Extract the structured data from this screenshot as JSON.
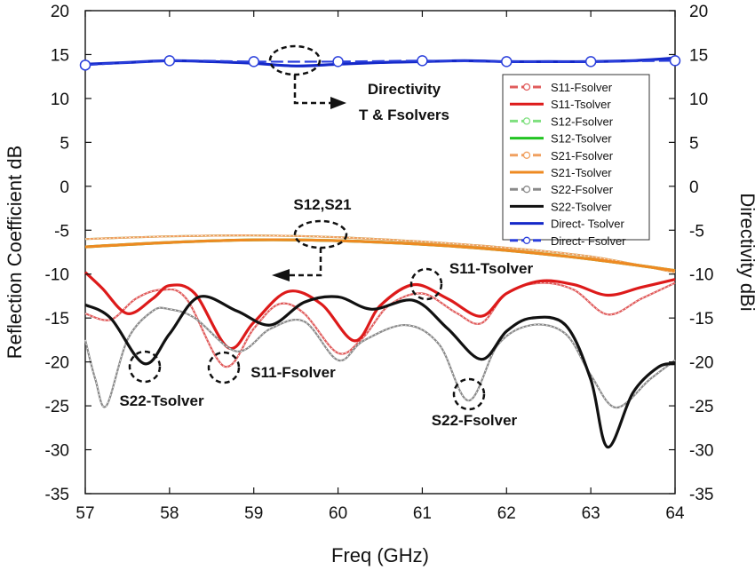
{
  "chart_data": {
    "type": "line",
    "xlabel": "Freq (GHz)",
    "ylabel": "Reflection Coefficient dB",
    "ylabel_right": "Directivity dBi",
    "xlim": [
      57,
      64
    ],
    "ylim": [
      -35,
      20
    ],
    "ylim_right": [
      -35,
      20
    ],
    "x_ticks": [
      "57",
      "58",
      "59",
      "60",
      "61",
      "62",
      "63",
      "64"
    ],
    "y_ticks": [
      "20",
      "15",
      "10",
      "5",
      "0",
      "-5",
      "-10",
      "-15",
      "-20",
      "-25",
      "-30",
      "-35"
    ],
    "grid": false,
    "legend_position": "right, upper",
    "series": [
      {
        "name": "S11-Fsolver",
        "color": "#e05c5c",
        "style": "marker",
        "x": [
          57,
          57.3,
          57.6,
          57.9,
          58.2,
          58.65,
          59.0,
          59.3,
          59.6,
          60.0,
          60.3,
          60.6,
          61.0,
          61.4,
          61.7,
          62.0,
          62.4,
          62.8,
          63.2,
          63.6,
          64.0
        ],
        "y": [
          -14.5,
          -15.2,
          -12.8,
          -11.8,
          -12.8,
          -20.5,
          -16.2,
          -13.4,
          -14.5,
          -19.0,
          -17.2,
          -13.6,
          -12.2,
          -14.4,
          -15.6,
          -12.2,
          -11.0,
          -11.8,
          -14.6,
          -12.8,
          -11.0
        ]
      },
      {
        "name": "S11-Tsolver",
        "color": "#dd1a1a",
        "style": "solid",
        "x": [
          57,
          57.2,
          57.5,
          57.8,
          58.0,
          58.3,
          58.7,
          59.0,
          59.4,
          59.8,
          60.2,
          60.5,
          60.9,
          61.3,
          61.7,
          62.0,
          62.4,
          62.8,
          63.2,
          63.6,
          64.0
        ],
        "y": [
          -9.8,
          -11.6,
          -14.5,
          -12.8,
          -11.3,
          -12.2,
          -18.4,
          -15.5,
          -12.0,
          -13.4,
          -17.6,
          -13.6,
          -11.2,
          -12.8,
          -14.8,
          -12.2,
          -10.8,
          -11.2,
          -12.4,
          -11.5,
          -10.6
        ]
      },
      {
        "name": "S12-Fsolver",
        "color": "#7fe07f",
        "style": "marker",
        "x": [
          57,
          58,
          59,
          60,
          61,
          62,
          63,
          64
        ],
        "y": [
          -6.0,
          -5.7,
          -5.6,
          -5.8,
          -6.3,
          -7.0,
          -8.0,
          -9.8
        ]
      },
      {
        "name": "S12-Tsolver",
        "color": "#22c422",
        "style": "solid",
        "x": [
          57,
          58,
          59,
          60,
          61,
          62,
          63,
          64
        ],
        "y": [
          -6.9,
          -6.4,
          -6.1,
          -6.2,
          -6.6,
          -7.3,
          -8.3,
          -9.6
        ]
      },
      {
        "name": "S21-Fsolver",
        "color": "#f0a060",
        "style": "marker",
        "x": [
          57,
          58,
          59,
          60,
          61,
          62,
          63,
          64
        ],
        "y": [
          -6.0,
          -5.7,
          -5.6,
          -5.8,
          -6.3,
          -7.0,
          -8.0,
          -9.8
        ]
      },
      {
        "name": "S21-Tsolver",
        "color": "#ee8a22",
        "style": "solid",
        "x": [
          57,
          58,
          59,
          60,
          61,
          62,
          63,
          64
        ],
        "y": [
          -6.9,
          -6.4,
          -6.1,
          -6.2,
          -6.6,
          -7.3,
          -8.3,
          -9.6
        ]
      },
      {
        "name": "S22-Fsolver",
        "color": "#8a8a8a",
        "style": "marker",
        "x": [
          57,
          57.12,
          57.25,
          57.5,
          57.8,
          58.0,
          58.3,
          58.8,
          59.2,
          59.6,
          60.0,
          60.3,
          60.8,
          61.2,
          61.55,
          61.9,
          62.3,
          62.7,
          63.0,
          63.3,
          63.7,
          64.0
        ],
        "y": [
          -17.5,
          -22.0,
          -25.0,
          -17.5,
          -14.2,
          -14.0,
          -15.0,
          -18.8,
          -16.2,
          -15.4,
          -19.8,
          -17.6,
          -15.8,
          -18.0,
          -24.4,
          -18.0,
          -15.8,
          -16.8,
          -21.5,
          -25.2,
          -22.0,
          -19.8
        ]
      },
      {
        "name": "S22-Tsolver",
        "color": "#111111",
        "style": "solid",
        "x": [
          57,
          57.3,
          57.7,
          58.0,
          58.35,
          58.8,
          59.2,
          59.6,
          60.0,
          60.4,
          60.9,
          61.3,
          61.7,
          62.0,
          62.3,
          62.7,
          63.0,
          63.2,
          63.5,
          63.8,
          64.0
        ],
        "y": [
          -13.5,
          -15.0,
          -20.2,
          -16.8,
          -12.6,
          -14.2,
          -15.8,
          -13.2,
          -12.6,
          -14.0,
          -13.0,
          -16.2,
          -19.7,
          -16.5,
          -15.0,
          -15.8,
          -22.0,
          -29.7,
          -23.5,
          -20.6,
          -20.2
        ]
      },
      {
        "name": "Direct- Tsolver",
        "color": "#1428c8",
        "style": "solid",
        "x": [
          57,
          57.5,
          58,
          58.5,
          59,
          59.5,
          60,
          60.5,
          61,
          61.5,
          62,
          62.5,
          63,
          63.5,
          64
        ],
        "y": [
          13.9,
          14.1,
          14.3,
          14.2,
          14.0,
          13.7,
          13.9,
          14.1,
          14.2,
          14.3,
          14.2,
          14.2,
          14.2,
          14.3,
          14.6
        ]
      },
      {
        "name": "Direct- Fsolver",
        "color": "#2a3fdc",
        "style": "marker",
        "x": [
          57,
          58,
          59,
          60,
          61,
          62,
          63,
          64
        ],
        "y": [
          13.8,
          14.3,
          14.2,
          14.2,
          14.3,
          14.2,
          14.2,
          14.3
        ]
      }
    ],
    "annotations": [
      {
        "text": "Directivity",
        "line2": "T & Fsolvers"
      },
      {
        "text": "S12,S21"
      },
      {
        "text": "S11-Tsolver"
      },
      {
        "text": "S22-Tsolver"
      },
      {
        "text": "S11-Fsolver"
      },
      {
        "text": "S22-Fsolver"
      }
    ]
  }
}
